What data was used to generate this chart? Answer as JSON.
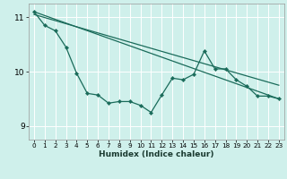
{
  "xlabel": "Humidex (Indice chaleur)",
  "ylabel": "",
  "background_color": "#cff0eb",
  "grid_color": "#ffffff",
  "line_color": "#1a6b5a",
  "xlim": [
    -0.5,
    23.5
  ],
  "ylim": [
    8.75,
    11.25
  ],
  "yticks": [
    9,
    10,
    11
  ],
  "xticks": [
    0,
    1,
    2,
    3,
    4,
    5,
    6,
    7,
    8,
    9,
    10,
    11,
    12,
    13,
    14,
    15,
    16,
    17,
    18,
    19,
    20,
    21,
    22,
    23
  ],
  "series1_x": [
    0,
    1,
    2,
    3,
    4,
    5,
    6,
    7,
    8,
    9,
    10,
    11,
    12,
    13,
    14,
    15,
    16,
    17,
    18,
    19,
    20,
    21,
    22,
    23
  ],
  "series1_y": [
    11.1,
    10.85,
    10.75,
    10.45,
    9.97,
    9.6,
    9.57,
    9.42,
    9.45,
    9.45,
    9.38,
    9.25,
    9.57,
    9.88,
    9.85,
    9.95,
    10.38,
    10.05,
    10.05,
    9.85,
    9.73,
    9.55,
    9.55,
    9.5
  ],
  "series2_x": [
    0,
    23
  ],
  "series2_y": [
    11.1,
    9.5
  ],
  "series3_x": [
    0,
    23
  ],
  "series3_y": [
    11.05,
    9.75
  ]
}
